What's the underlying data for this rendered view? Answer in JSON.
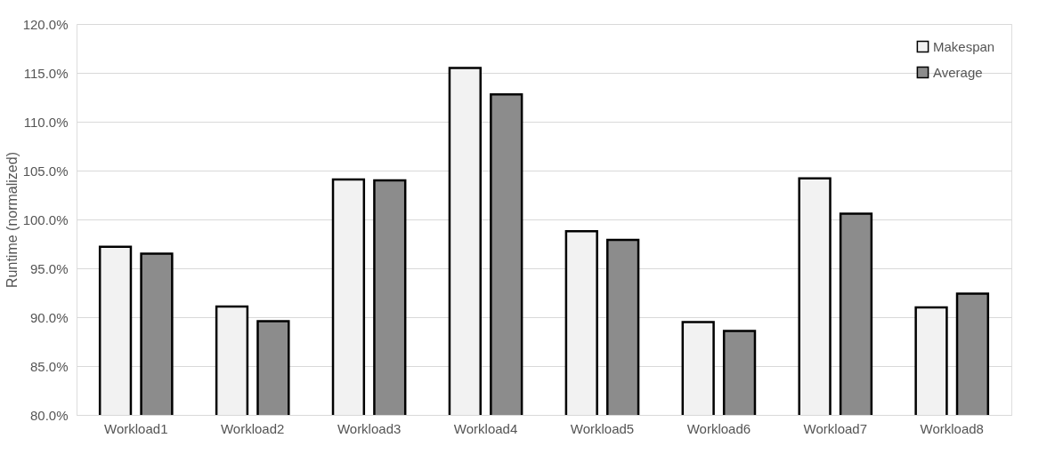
{
  "chart_data": {
    "type": "bar",
    "ylabel": "Runtime (normalized)",
    "categories": [
      "Workload1",
      "Workload2",
      "Workload3",
      "Workload4",
      "Workload5",
      "Workload6",
      "Workload7",
      "Workload8"
    ],
    "series": [
      {
        "name": "Makespan",
        "color": "#f2f2f2",
        "values": [
          97.2,
          91.1,
          104.1,
          115.5,
          98.8,
          89.5,
          104.2,
          91.0
        ]
      },
      {
        "name": "Average",
        "color": "#8c8c8c",
        "values": [
          96.5,
          89.6,
          104.0,
          112.8,
          97.9,
          88.6,
          100.6,
          92.4
        ]
      }
    ],
    "ylim": [
      80,
      120
    ],
    "yticks": [
      {
        "value": 80,
        "label": "80.0%"
      },
      {
        "value": 85,
        "label": "85.0%"
      },
      {
        "value": 90,
        "label": "90.0%"
      },
      {
        "value": 95,
        "label": "95.0%"
      },
      {
        "value": 100,
        "label": "100.0%"
      },
      {
        "value": 105,
        "label": "105.0%"
      },
      {
        "value": 110,
        "label": "110.0%"
      },
      {
        "value": 115,
        "label": "115.0%"
      },
      {
        "value": 120,
        "label": "120.0%"
      }
    ],
    "grid": "y",
    "legend": "top right"
  }
}
